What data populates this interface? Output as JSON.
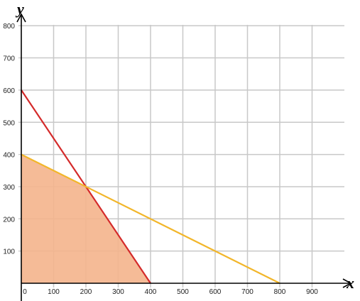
{
  "chart_data": {
    "type": "line",
    "xlabel": "x",
    "ylabel": "y",
    "xlim": [
      0,
      950
    ],
    "ylim": [
      0,
      800
    ],
    "x_ticks": [
      0,
      100,
      200,
      300,
      400,
      500,
      600,
      700,
      800,
      900
    ],
    "y_ticks": [
      100,
      200,
      300,
      400,
      500,
      600,
      700,
      800
    ],
    "grid": true,
    "legend": "none",
    "series": [
      {
        "points": [
          [
            0,
            600
          ],
          [
            400,
            0
          ]
        ],
        "color": "#d42a2a"
      },
      {
        "points": [
          [
            0,
            400
          ],
          [
            800,
            0
          ]
        ],
        "color": "#f2b62a"
      }
    ],
    "shaded_region": {
      "points": [
        [
          0,
          0
        ],
        [
          0,
          400
        ],
        [
          200,
          300
        ],
        [
          400,
          0
        ]
      ],
      "color": "#f4b48c"
    }
  }
}
